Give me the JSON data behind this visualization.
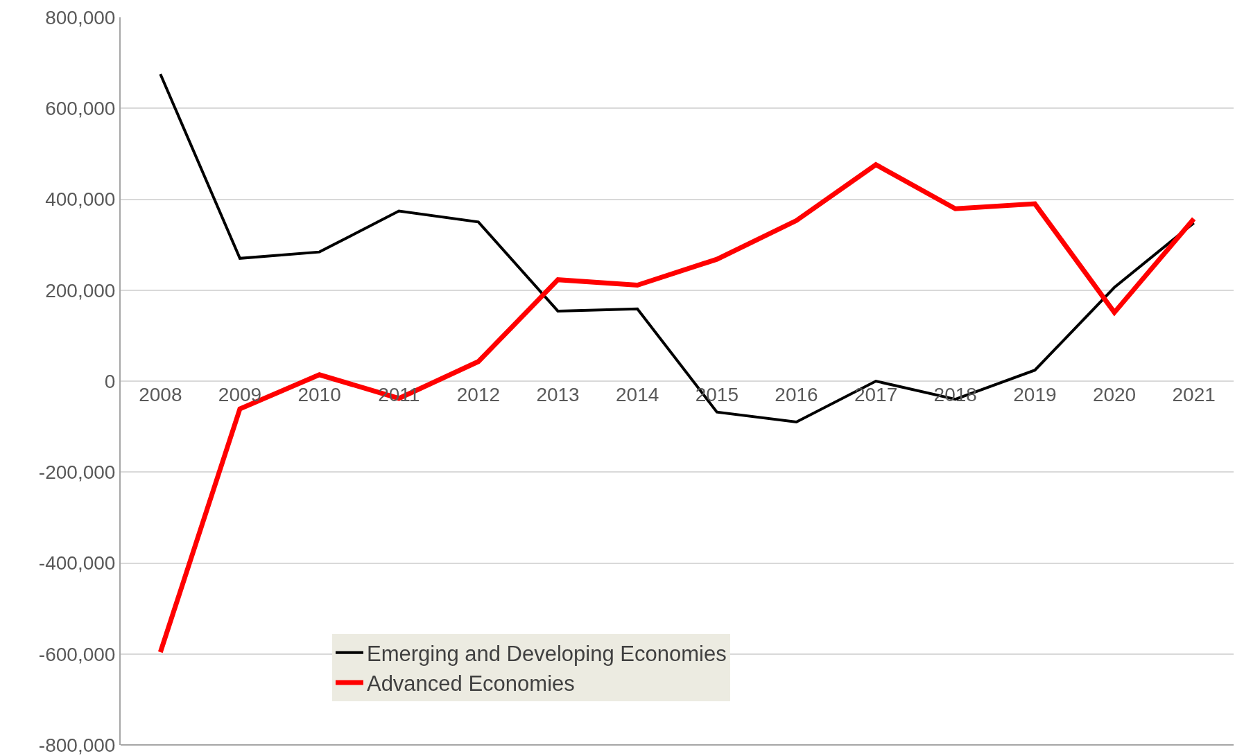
{
  "chart_data": {
    "type": "line",
    "categories": [
      "2008",
      "2009",
      "2010",
      "2011",
      "2012",
      "2013",
      "2014",
      "2015",
      "2016",
      "2017",
      "2018",
      "2019",
      "2020",
      "2021"
    ],
    "series": [
      {
        "name": "Emerging and Developing Economies",
        "color": "#000000",
        "values": [
          675000,
          270000,
          284000,
          374000,
          350000,
          154000,
          159000,
          -68000,
          -90000,
          0,
          -40000,
          24000,
          206000,
          348000
        ]
      },
      {
        "name": "Advanced Economies",
        "color": "#ff0000",
        "values": [
          -596000,
          -61000,
          14000,
          -38000,
          43000,
          223000,
          211000,
          268000,
          353000,
          476000,
          379000,
          390000,
          151000,
          357000
        ]
      }
    ],
    "ylim": [
      -800000,
      800000
    ],
    "yticks": [
      {
        "value": -800000,
        "label": "-800,000"
      },
      {
        "value": -600000,
        "label": "-600,000"
      },
      {
        "value": -400000,
        "label": "-400,000"
      },
      {
        "value": -200000,
        "label": "-200,000"
      },
      0,
      {
        "value": 200000,
        "label": "200,000"
      },
      {
        "value": 400000,
        "label": "400,000"
      },
      {
        "value": 600000,
        "label": "600,000"
      },
      {
        "value": 800000,
        "label": "800,000"
      }
    ],
    "grid": "y",
    "legend": "bottom",
    "marker": "none",
    "line_style": "solid"
  }
}
